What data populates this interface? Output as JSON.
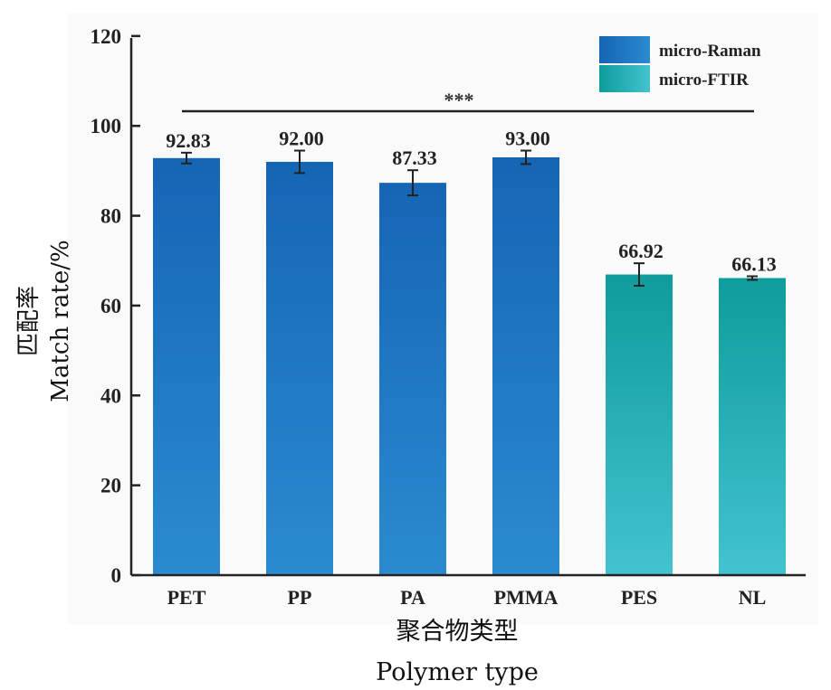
{
  "chart_data": {
    "type": "bar",
    "categories": [
      "PET",
      "PP",
      "PA",
      "PMMA",
      "PES",
      "NL"
    ],
    "values": [
      92.83,
      92.0,
      87.33,
      93.0,
      66.92,
      66.13
    ],
    "value_labels": [
      "92.83",
      "92.00",
      "87.33",
      "93.00",
      "66.92",
      "66.13"
    ],
    "error": [
      1.2,
      2.5,
      2.8,
      1.5,
      2.5,
      0.4
    ],
    "bar_series": [
      "micro-Raman",
      "micro-Raman",
      "micro-Raman",
      "micro-Raman",
      "micro-FTIR",
      "micro-FTIR"
    ],
    "legend": [
      {
        "name": "micro-Raman",
        "color_top": "#1565b5",
        "color_bottom": "#2a8bd0"
      },
      {
        "name": "micro-FTIR",
        "color_top": "#0e9c9c",
        "color_bottom": "#43c3cf"
      }
    ],
    "legend_position": "top-right",
    "ylim": [
      0,
      125
    ],
    "yticks": [
      0,
      20,
      40,
      60,
      80,
      100,
      120
    ],
    "ylabel_cn": "匹配率",
    "ylabel_en": "Match rate/%",
    "xlabel_cn": "聚合物类型",
    "xlabel_en": "Polymer type",
    "significance": "***",
    "grid": false
  }
}
